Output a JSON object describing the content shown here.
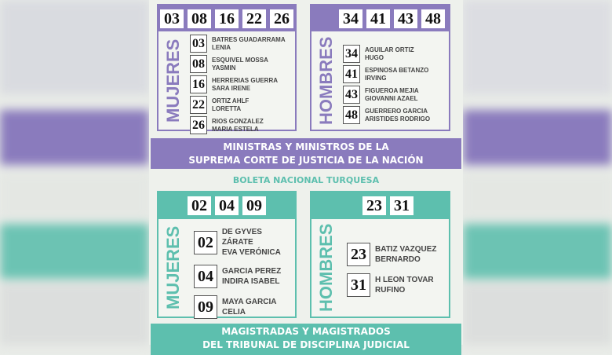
{
  "colors": {
    "purple": "#8a7bbd",
    "teal": "#5dbfae"
  },
  "top": {
    "mujeres": {
      "label": "MUJERES",
      "numbers": [
        "03",
        "08",
        "16",
        "22",
        "26"
      ],
      "candidates": [
        {
          "n": "03",
          "l1": "BATRES GUADARRAMA",
          "l2": "LENIA"
        },
        {
          "n": "08",
          "l1": "ESQUIVEL MOSSA",
          "l2": "YASMIN"
        },
        {
          "n": "16",
          "l1": "HERRERIAS GUERRA",
          "l2": "SARA IRENE"
        },
        {
          "n": "22",
          "l1": "ORTIZ AHLF",
          "l2": "LORETTA"
        },
        {
          "n": "26",
          "l1": "RIOS GONZALEZ",
          "l2": "MARIA ESTELA"
        }
      ]
    },
    "hombres": {
      "label": "HOMBRES",
      "numbers": [
        "34",
        "41",
        "43",
        "48"
      ],
      "candidates": [
        {
          "n": "34",
          "l1": "AGUILAR ORTIZ",
          "l2": "HUGO"
        },
        {
          "n": "41",
          "l1": "ESPINOSA BETANZO",
          "l2": "IRVING"
        },
        {
          "n": "43",
          "l1": "FIGUEROA MEJIA",
          "l2": "GIOVANNI AZAEL"
        },
        {
          "n": "48",
          "l1": "GUERRERO GARCIA",
          "l2": "ARISTIDES RODRIGO"
        }
      ]
    },
    "banner": {
      "line1": "MINISTRAS Y MINISTROS DE LA",
      "line2": "SUPREMA CORTE DE JUSTICIA DE LA NACIÓN"
    }
  },
  "bottom": {
    "title": "BOLETA NACIONAL TURQUESA",
    "mujeres": {
      "label": "MUJERES",
      "numbers": [
        "02",
        "04",
        "09"
      ],
      "candidates": [
        {
          "n": "02",
          "l1": "DE GYVES  ZÁRATE",
          "l2": "EVA VERÓNICA"
        },
        {
          "n": "04",
          "l1": "GARCIA PEREZ",
          "l2": "INDIRA ISABEL"
        },
        {
          "n": "09",
          "l1": "MAYA GARCIA",
          "l2": "CELIA"
        }
      ]
    },
    "hombres": {
      "label": "HOMBRES",
      "numbers": [
        "23",
        "31"
      ],
      "candidates": [
        {
          "n": "23",
          "l1": "BATIZ VAZQUEZ",
          "l2": "BERNARDO"
        },
        {
          "n": "31",
          "l1": "H LEON TOVAR",
          "l2": "RUFINO"
        }
      ]
    },
    "banner": {
      "line1": "MAGISTRADAS Y MAGISTRADOS",
      "line2": "DEL TRIBUNAL DE DISCIPLINA JUDICIAL"
    }
  }
}
